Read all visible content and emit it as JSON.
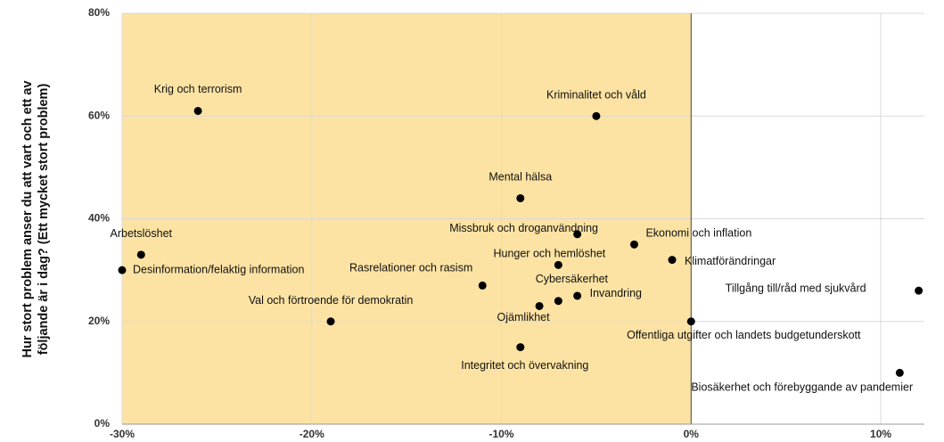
{
  "chart_data": {
    "type": "scatter",
    "ylabel": "Hur stort problem anser du att vart och ett av följande är i dag? (Ett mycket stort problem)",
    "color": "#000000",
    "shaded_region": {
      "x": [
        -30,
        0
      ],
      "color": "#fde3a3"
    },
    "grid": true,
    "xlim": [
      -30,
      12.3
    ],
    "ylim": [
      0,
      80
    ],
    "xticks": [
      {
        "value": -30,
        "label": "-30%"
      },
      {
        "value": -20,
        "label": "-20%"
      },
      {
        "value": -10,
        "label": "-10%"
      },
      {
        "value": 0,
        "label": "0%"
      },
      {
        "value": 10,
        "label": "10%"
      }
    ],
    "yticks": [
      {
        "value": 0,
        "label": "0%"
      },
      {
        "value": 20,
        "label": "20%"
      },
      {
        "value": 40,
        "label": "40%"
      },
      {
        "value": 60,
        "label": "60%"
      },
      {
        "value": 80,
        "label": "80%"
      }
    ],
    "labels": [
      "Krig och terrorism",
      "Kriminalitet och våld",
      "Mental hälsa",
      "Missbruk och droganvändning",
      "Ekonomi och inflation",
      "Arbetslöshet",
      "Hunger och hemlöshet",
      "Klimatförändringar",
      "Desinformation/felaktig information",
      "Rasrelationer och rasism",
      "Tillgång till/råd med sjukvård",
      "Cybersäkerhet",
      "Invandring",
      "Ojämlikhet",
      "Val och förtroende för demokratin",
      "Offentliga utgifter och landets budgetunderskott",
      "Integritet och övervakning",
      "Biosäkerhet och förebyggande av pandemier"
    ],
    "x": [
      -26,
      -5,
      -9,
      -6,
      -3,
      -29,
      -7,
      -1,
      -30,
      -11,
      12,
      -7,
      -6,
      -8,
      -19,
      0,
      -9,
      11
    ],
    "values": [
      61,
      60,
      44,
      37,
      35,
      33,
      31,
      32,
      30,
      27,
      26,
      24,
      25,
      23,
      20,
      20,
      15,
      10
    ]
  }
}
